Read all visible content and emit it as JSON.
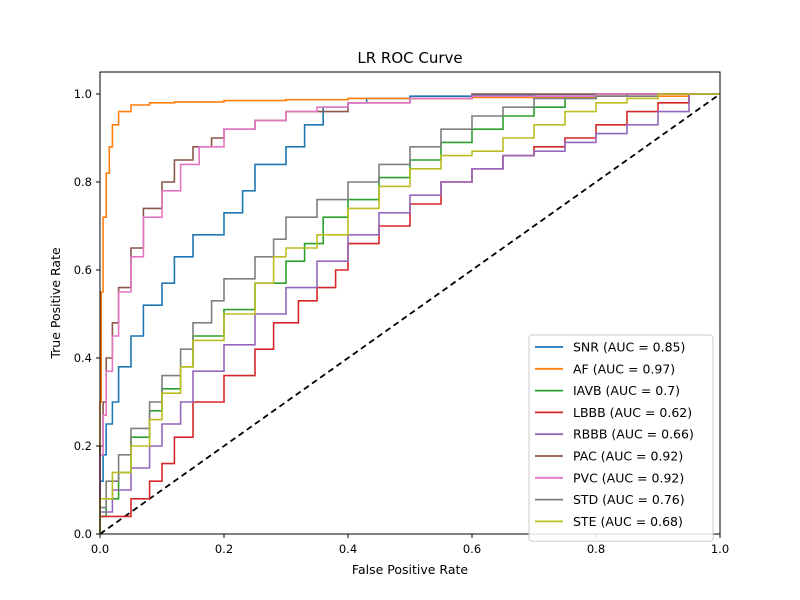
{
  "chart_data": {
    "type": "line",
    "title": "LR ROC Curve",
    "xlabel": "False Positive Rate",
    "ylabel": "True Positive Rate",
    "xlim": [
      0,
      1.0
    ],
    "ylim": [
      0,
      1.05
    ],
    "xticks": [
      0.0,
      0.2,
      0.4,
      0.6,
      0.8,
      1.0
    ],
    "yticks": [
      0.0,
      0.2,
      0.4,
      0.6,
      0.8,
      1.0
    ],
    "xtick_labels": [
      "0.0",
      "0.2",
      "0.4",
      "0.6",
      "0.8",
      "1.0"
    ],
    "ytick_labels": [
      "0.0",
      "0.2",
      "0.4",
      "0.6",
      "0.8",
      "1.0"
    ],
    "grid": false,
    "legend_position": "bottom-right",
    "diagonal": {
      "x": [
        0,
        1
      ],
      "y": [
        0,
        1
      ],
      "color": "#000000",
      "style": "dashed"
    },
    "series": [
      {
        "name": "SNR (AUC = 0.85)",
        "color": "#1f77b4",
        "x": [
          0,
          0.005,
          0.01,
          0.02,
          0.03,
          0.05,
          0.07,
          0.1,
          0.12,
          0.15,
          0.2,
          0.23,
          0.25,
          0.3,
          0.33,
          0.36,
          0.4,
          0.43,
          0.5,
          0.6,
          0.7,
          0.8,
          0.9,
          1.0
        ],
        "y": [
          0,
          0.12,
          0.18,
          0.25,
          0.3,
          0.38,
          0.45,
          0.52,
          0.57,
          0.63,
          0.68,
          0.73,
          0.78,
          0.84,
          0.88,
          0.93,
          0.97,
          0.98,
          0.99,
          0.995,
          0.998,
          0.999,
          1.0,
          1.0
        ]
      },
      {
        "name": "AF (AUC = 0.97)",
        "color": "#ff7f0e",
        "x": [
          0,
          0.002,
          0.005,
          0.01,
          0.015,
          0.02,
          0.03,
          0.05,
          0.08,
          0.12,
          0.2,
          0.3,
          0.4,
          0.6,
          0.8,
          0.95,
          1.0
        ],
        "y": [
          0,
          0.3,
          0.55,
          0.72,
          0.82,
          0.88,
          0.93,
          0.96,
          0.975,
          0.98,
          0.982,
          0.985,
          0.987,
          0.99,
          0.992,
          0.995,
          1.0
        ]
      },
      {
        "name": "IAVB (AUC = 0.7)",
        "color": "#2ca02c",
        "x": [
          0,
          0.01,
          0.03,
          0.05,
          0.08,
          0.1,
          0.13,
          0.15,
          0.2,
          0.25,
          0.3,
          0.33,
          0.36,
          0.4,
          0.45,
          0.5,
          0.55,
          0.6,
          0.65,
          0.7,
          0.75,
          0.8,
          0.85,
          0.9,
          1.0
        ],
        "y": [
          0,
          0.04,
          0.08,
          0.14,
          0.22,
          0.28,
          0.33,
          0.38,
          0.45,
          0.51,
          0.57,
          0.62,
          0.66,
          0.72,
          0.76,
          0.81,
          0.85,
          0.89,
          0.92,
          0.95,
          0.97,
          0.99,
          0.995,
          1.0,
          1.0
        ]
      },
      {
        "name": "LBBB (AUC = 0.62)",
        "color": "#d62728",
        "x": [
          0,
          0.05,
          0.08,
          0.1,
          0.12,
          0.15,
          0.2,
          0.25,
          0.28,
          0.32,
          0.35,
          0.38,
          0.4,
          0.45,
          0.5,
          0.55,
          0.6,
          0.65,
          0.7,
          0.75,
          0.8,
          0.85,
          0.9,
          0.95,
          1.0
        ],
        "y": [
          0,
          0.04,
          0.08,
          0.12,
          0.16,
          0.22,
          0.3,
          0.36,
          0.42,
          0.48,
          0.53,
          0.56,
          0.6,
          0.66,
          0.7,
          0.75,
          0.8,
          0.83,
          0.86,
          0.88,
          0.9,
          0.93,
          0.96,
          0.98,
          1.0
        ]
      },
      {
        "name": "RBBB (AUC = 0.66)",
        "color": "#9467bd",
        "x": [
          0,
          0.02,
          0.05,
          0.08,
          0.1,
          0.13,
          0.15,
          0.2,
          0.25,
          0.3,
          0.35,
          0.4,
          0.45,
          0.5,
          0.55,
          0.6,
          0.65,
          0.7,
          0.75,
          0.8,
          0.85,
          0.9,
          0.95,
          1.0
        ],
        "y": [
          0,
          0.05,
          0.1,
          0.15,
          0.2,
          0.25,
          0.3,
          0.37,
          0.43,
          0.5,
          0.56,
          0.62,
          0.68,
          0.73,
          0.77,
          0.8,
          0.83,
          0.86,
          0.87,
          0.89,
          0.91,
          0.93,
          0.96,
          1.0
        ]
      },
      {
        "name": "PAC (AUC = 0.92)",
        "color": "#8c564b",
        "x": [
          0,
          0.005,
          0.01,
          0.02,
          0.03,
          0.05,
          0.07,
          0.1,
          0.12,
          0.15,
          0.18,
          0.2,
          0.25,
          0.3,
          0.4,
          0.5,
          0.6,
          0.8,
          1.0
        ],
        "y": [
          0,
          0.2,
          0.3,
          0.4,
          0.48,
          0.56,
          0.65,
          0.74,
          0.8,
          0.85,
          0.88,
          0.9,
          0.92,
          0.94,
          0.96,
          0.98,
          0.99,
          1.0,
          1.0
        ]
      },
      {
        "name": "PVC (AUC = 0.92)",
        "color": "#e377c2",
        "x": [
          0,
          0.005,
          0.01,
          0.02,
          0.03,
          0.05,
          0.07,
          0.1,
          0.13,
          0.16,
          0.2,
          0.25,
          0.3,
          0.35,
          0.4,
          0.5,
          0.6,
          0.8,
          1.0
        ],
        "y": [
          0,
          0.18,
          0.27,
          0.37,
          0.45,
          0.55,
          0.63,
          0.72,
          0.78,
          0.84,
          0.88,
          0.92,
          0.94,
          0.96,
          0.97,
          0.98,
          0.99,
          0.995,
          1.0
        ]
      },
      {
        "name": "STD (AUC = 0.76)",
        "color": "#7f7f7f",
        "x": [
          0,
          0.01,
          0.03,
          0.05,
          0.08,
          0.1,
          0.13,
          0.15,
          0.18,
          0.2,
          0.25,
          0.28,
          0.3,
          0.35,
          0.4,
          0.45,
          0.5,
          0.55,
          0.6,
          0.65,
          0.7,
          0.8,
          0.9,
          1.0
        ],
        "y": [
          0,
          0.06,
          0.12,
          0.18,
          0.24,
          0.3,
          0.36,
          0.42,
          0.48,
          0.53,
          0.58,
          0.63,
          0.67,
          0.72,
          0.76,
          0.8,
          0.84,
          0.88,
          0.92,
          0.95,
          0.97,
          0.99,
          0.995,
          1.0
        ]
      },
      {
        "name": "STE (AUC = 0.68)",
        "color": "#bcbd22",
        "x": [
          0,
          0.02,
          0.05,
          0.08,
          0.1,
          0.13,
          0.15,
          0.2,
          0.25,
          0.28,
          0.3,
          0.35,
          0.4,
          0.45,
          0.5,
          0.55,
          0.6,
          0.65,
          0.7,
          0.75,
          0.8,
          0.85,
          0.9,
          1.0
        ],
        "y": [
          0,
          0.08,
          0.14,
          0.2,
          0.26,
          0.32,
          0.38,
          0.44,
          0.5,
          0.57,
          0.63,
          0.65,
          0.68,
          0.74,
          0.79,
          0.83,
          0.86,
          0.87,
          0.9,
          0.93,
          0.96,
          0.98,
          0.99,
          1.0
        ]
      }
    ]
  }
}
